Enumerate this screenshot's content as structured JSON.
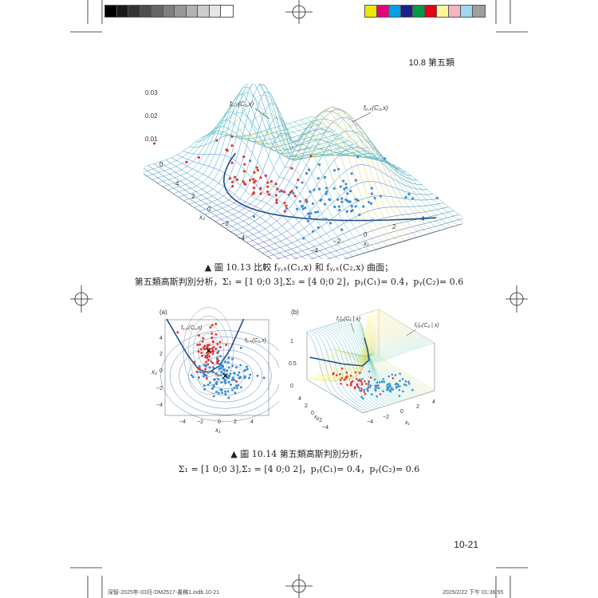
{
  "header": {
    "section": "10.8 第五類",
    "page_number": "10-21"
  },
  "colors": {
    "grays": [
      "#000000",
      "#1a1a1a",
      "#333333",
      "#4d4d4d",
      "#666666",
      "#808080",
      "#999999",
      "#b3b3b3",
      "#cccccc",
      "#e6e6e6",
      "#ffffff"
    ],
    "process": [
      "#f2e600",
      "#e6007e",
      "#00a0e9",
      "#1d2088",
      "#009944",
      "#e60012",
      "#fff799",
      "#f5b2c0",
      "#a0d8ef",
      "#9e9e9e"
    ],
    "class1": "#e03a2f",
    "class2": "#3a8fd6",
    "boundary": "#1f4e8c"
  },
  "figure13": {
    "z_ticks": [
      "0.03",
      "0.02",
      "0.01",
      "0"
    ],
    "x2_ticks": [
      "4",
      "2",
      "0",
      "−2",
      "−4"
    ],
    "x1_ticks": [
      "−4",
      "−2",
      "0",
      "2",
      "4"
    ],
    "x2_label": "x₂",
    "x1_label": "x₁",
    "annot_c1": "fᵧ,ₓ(C₁,x)",
    "annot_c2": "fᵧ,ₓ(C₂,x)"
  },
  "caption13": {
    "line1": "▲ 圖 10.13 比較 fᵧ,ₓ(C₁,x) 和 fᵧ,ₓ(C₂,x) 曲面；",
    "line2": "第五類高斯判別分析，Σ₁ = [1 0;0 3],Σ₂ = [4 0;0 2]，pᵧ(C₁)= 0.4，pᵧ(C₂)= 0.6"
  },
  "figure14a": {
    "panel": "(a)",
    "y_ticks": [
      "4",
      "2",
      "0",
      "−2",
      "−4"
    ],
    "x_ticks": [
      "−4",
      "−2",
      "0",
      "2",
      "4"
    ],
    "ylabel": "x₂",
    "xlabel": "x₁",
    "annot_c1": "fᵧ,ₓ(C₁,x)",
    "annot_c2": "fᵧ,ₓ(C₂,x)"
  },
  "figure14b": {
    "panel": "(b)",
    "z_ticks": [
      "1",
      "0.5",
      "0"
    ],
    "x2_ticks": [
      "4",
      "2",
      "0",
      "−2",
      "−4"
    ],
    "x1_ticks": [
      "−4",
      "−2",
      "0",
      "2",
      "4"
    ],
    "x2_label": "x₂",
    "x1_label": "x₁",
    "annot_c1": "fᵧ|ₓ(C₁ | x)",
    "annot_c2": "fᵧ|ₓ(C₂ | x)"
  },
  "caption14": {
    "line1": "▲ 圖 10.14 第五類高斯判別分析，",
    "line2": "Σ₁ = [1 0;0 3],Σ₂ = [4 0;0 2]，pᵧ(C₁)= 0.4，pᵧ(C₂)= 0.6"
  },
  "footer": {
    "file": "深智-2025年-03月-DM2517-書稿1.indb   10-21",
    "timestamp": "2025/2/22   下午 01:36:55"
  }
}
